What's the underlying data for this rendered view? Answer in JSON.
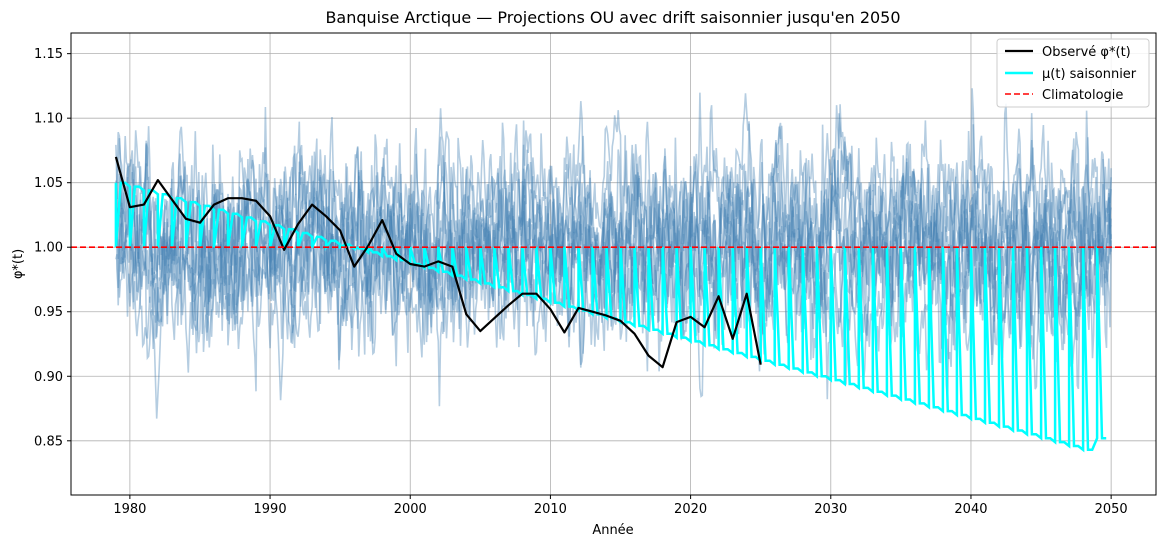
{
  "chart_data": {
    "type": "line",
    "title": "Banquise Arctique — Projections OU avec drift saisonnier jusqu'en 2050",
    "xlabel": "Année",
    "ylabel": "φ*(t)",
    "xlim": [
      1975.8,
      2053.2
    ],
    "ylim": [
      0.808,
      1.166
    ],
    "x_ticks": [
      1980,
      1990,
      2000,
      2010,
      2020,
      2030,
      2040,
      2050
    ],
    "y_ticks": [
      0.85,
      0.9,
      0.95,
      1.0,
      1.05,
      1.1,
      1.15
    ],
    "y_tick_labels": [
      "0.85",
      "0.90",
      "0.95",
      "1.00",
      "1.05",
      "1.10",
      "1.15"
    ],
    "grid": true,
    "legend_position": "top-right",
    "colors": {
      "observed": "#000000",
      "mu": "#00ffff",
      "climatology": "#ff0000",
      "simulations": "#4682b4"
    },
    "series": [
      {
        "name": "Observé φ*(t)",
        "style": "solid",
        "x": [
          1979,
          1980,
          1981,
          1982,
          1983,
          1984,
          1985,
          1986,
          1987,
          1988,
          1989,
          1990,
          1991,
          1992,
          1993,
          1994,
          1995,
          1996,
          1997,
          1998,
          1999,
          2000,
          2001,
          2002,
          2003,
          2004,
          2005,
          2006,
          2007,
          2008,
          2009,
          2010,
          2011,
          2012,
          2013,
          2014,
          2015,
          2016,
          2017,
          2018,
          2019,
          2020,
          2021,
          2022,
          2023,
          2024,
          2025
        ],
        "y": [
          1.07,
          1.031,
          1.033,
          1.052,
          1.037,
          1.022,
          1.019,
          1.033,
          1.038,
          1.038,
          1.036,
          1.024,
          0.998,
          1.018,
          1.033,
          1.024,
          1.013,
          0.985,
          1.001,
          1.021,
          0.995,
          0.987,
          0.985,
          0.989,
          0.985,
          0.948,
          0.935,
          0.945,
          0.955,
          0.964,
          0.964,
          0.952,
          0.934,
          0.953,
          0.95,
          0.947,
          0.943,
          0.933,
          0.916,
          0.907,
          0.942,
          0.946,
          0.938,
          0.962,
          0.929,
          0.964,
          0.909
        ]
      },
      {
        "name": "μ(t) saisonnier",
        "style": "solid",
        "note_shape": "annual sawtooth",
        "x_years": [
          1979,
          1980,
          1981,
          1982,
          1983,
          1984,
          1985,
          1986,
          1987,
          1988,
          1989,
          1990,
          1991,
          1992,
          1993,
          1994,
          1995,
          1996,
          1997,
          1998,
          1999,
          2000,
          2001,
          2002,
          2003,
          2004,
          2005,
          2006,
          2007,
          2008,
          2009,
          2010,
          2011,
          2012,
          2013,
          2014,
          2015,
          2016,
          2017,
          2018,
          2019,
          2020,
          2021,
          2022,
          2023,
          2024,
          2025,
          2026,
          2027,
          2028,
          2029,
          2030,
          2031,
          2032,
          2033,
          2034,
          2035,
          2036,
          2037,
          2038,
          2039,
          2040,
          2041,
          2042,
          2043,
          2044,
          2045,
          2046,
          2047,
          2048,
          2049
        ],
        "peak": [
          1.05,
          1.047,
          1.044,
          1.041,
          1.038,
          1.035,
          1.032,
          1.029,
          1.026,
          1.023,
          1.02,
          1.017,
          1.014,
          1.011,
          1.008,
          1.005,
          1.002,
          0.999,
          0.996,
          0.993,
          0.99,
          0.987,
          0.984,
          0.981,
          0.978,
          0.975,
          0.972,
          0.969,
          0.966,
          0.963,
          0.96,
          0.957,
          0.954,
          0.951,
          0.948,
          0.945,
          0.942,
          0.939,
          0.936,
          0.933,
          0.93,
          0.927,
          0.924,
          0.921,
          0.918,
          0.915,
          0.912,
          0.909,
          0.906,
          0.903,
          0.9,
          0.897,
          0.894,
          0.891,
          0.888,
          0.885,
          0.882,
          0.879,
          0.876,
          0.873,
          0.87,
          0.867,
          0.864,
          0.861,
          0.858,
          0.855,
          0.852,
          0.849,
          0.846,
          0.843,
          0.852
        ],
        "trough": 1.0
      },
      {
        "name": "Climatologie",
        "style": "dashed",
        "y": 1.0
      }
    ],
    "simulations": {
      "count": 10,
      "x_range": [
        1979,
        2050
      ],
      "center": 1.0,
      "typical_range": [
        0.88,
        1.12
      ],
      "extremes": {
        "min": 0.825,
        "max": 1.15
      }
    }
  }
}
